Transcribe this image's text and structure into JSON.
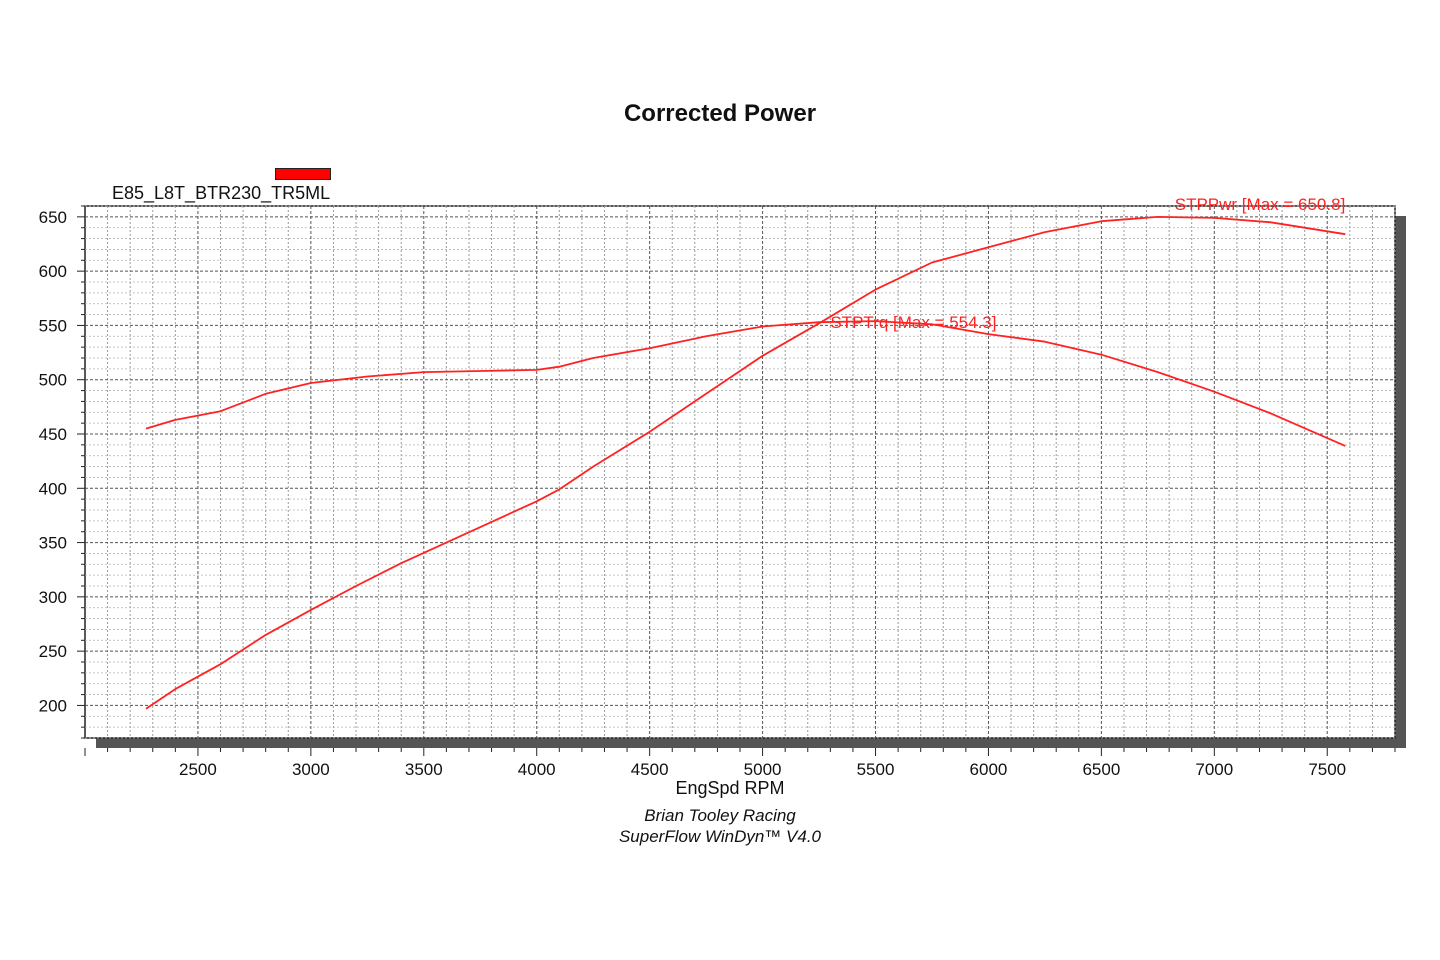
{
  "chart_data": {
    "type": "line",
    "title": "Corrected Power",
    "legend": {
      "label": "E85_L8T_BTR230_TR5ML",
      "color": "#ff0000",
      "placement": "top-left"
    },
    "xlabel": "EngSpd RPM",
    "ylabel": "",
    "xlim": [
      2000,
      7800
    ],
    "ylim": [
      170,
      660
    ],
    "x_ticks": [
      2500,
      3000,
      3500,
      4000,
      4500,
      5000,
      5500,
      6000,
      6500,
      7000,
      7500
    ],
    "y_ticks": [
      200,
      250,
      300,
      350,
      400,
      450,
      500,
      550,
      600,
      650
    ],
    "grid": true,
    "series": [
      {
        "name": "STPPwr",
        "annotation": "STPPwr [Max = 650.8]",
        "color": "#ff2222",
        "x": [
          2270,
          2400,
          2600,
          2800,
          3000,
          3200,
          3400,
          3600,
          3800,
          4000,
          4100,
          4250,
          4500,
          4750,
          5000,
          5250,
          5500,
          5750,
          6000,
          6250,
          6500,
          6750,
          7000,
          7250,
          7580
        ],
        "values": [
          197,
          215,
          238,
          265,
          288,
          310,
          331,
          350,
          369,
          388,
          399,
          420,
          452,
          487,
          522,
          552,
          583,
          608,
          622,
          636,
          646,
          650,
          649,
          645,
          634
        ]
      },
      {
        "name": "STPTrq",
        "annotation": "STPTrq [Max = 554.3]",
        "color": "#ff2222",
        "x": [
          2270,
          2400,
          2600,
          2800,
          3000,
          3250,
          3500,
          3750,
          4000,
          4100,
          4250,
          4500,
          4750,
          5000,
          5250,
          5500,
          5750,
          6000,
          6250,
          6500,
          6750,
          7000,
          7250,
          7580
        ],
        "values": [
          455,
          463,
          471,
          487,
          497,
          503,
          507,
          508,
          509,
          512,
          520,
          529,
          540,
          549,
          553,
          554,
          551,
          542,
          535,
          523,
          507,
          489,
          469,
          439
        ]
      }
    ]
  },
  "credits": {
    "line1": "Brian Tooley Racing",
    "line2": "SuperFlow WinDyn™  V4.0"
  }
}
